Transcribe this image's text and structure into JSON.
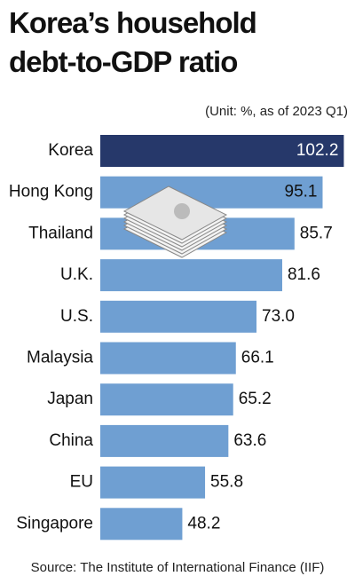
{
  "chart_data": {
    "type": "bar",
    "orientation": "horizontal",
    "title": "Korea’s household debt-to-GDP ratio",
    "subtitle": "(Unit: %, as of 2023 Q1)",
    "source": "Source: The Institute of International Finance (IIF)",
    "categories": [
      "Korea",
      "Hong Kong",
      "Thailand",
      "U.K.",
      "U.S.",
      "Malaysia",
      "Japan",
      "China",
      "EU",
      "Singapore"
    ],
    "values": [
      102.2,
      95.1,
      85.7,
      81.6,
      73.0,
      66.1,
      65.2,
      63.6,
      55.8,
      48.2
    ],
    "value_labels": [
      "102.2",
      "95.1",
      "85.7",
      "81.6",
      "73.0",
      "66.1",
      "65.2",
      "63.6",
      "55.8",
      "48.2"
    ],
    "colors": [
      "#26386a",
      "#6f9fd2",
      "#6f9fd2",
      "#6f9fd2",
      "#6f9fd2",
      "#6f9fd2",
      "#6f9fd2",
      "#6f9fd2",
      "#6f9fd2",
      "#6f9fd2"
    ]
  }
}
